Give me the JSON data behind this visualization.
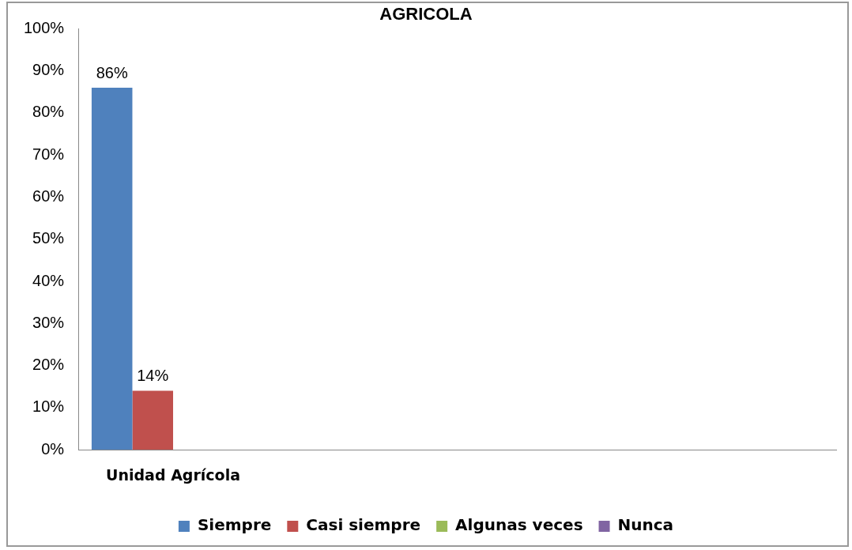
{
  "chart_data": {
    "type": "bar",
    "title": "AGRICOLA",
    "categories": [
      "Unidad Agrícola",
      null,
      null,
      null
    ],
    "series": [
      {
        "name": "Siempre",
        "color": "#4f81bd",
        "values": [
          86,
          null,
          null,
          null
        ]
      },
      {
        "name": "Casi siempre",
        "color": "#c0504d",
        "values": [
          14,
          null,
          null,
          null
        ]
      },
      {
        "name": "Algunas veces",
        "color": "#9bbb59",
        "values": [
          null,
          null,
          null,
          null
        ]
      },
      {
        "name": "Nunca",
        "color": "#8064a2",
        "values": [
          null,
          null,
          null,
          null
        ]
      }
    ],
    "value_labels": [
      [
        "86%",
        null,
        null,
        null
      ],
      [
        "14%",
        null,
        null,
        null
      ],
      [
        null,
        null,
        null,
        null
      ],
      [
        null,
        null,
        null,
        null
      ]
    ],
    "ylim": [
      0,
      100
    ],
    "yticks": [
      {
        "value": 0,
        "label": "0%"
      },
      {
        "value": 10,
        "label": "10%"
      },
      {
        "value": 20,
        "label": "20%"
      },
      {
        "value": 30,
        "label": "30%"
      },
      {
        "value": 40,
        "label": "40%"
      },
      {
        "value": 50,
        "label": "50%"
      },
      {
        "value": 60,
        "label": "60%"
      },
      {
        "value": 70,
        "label": "70%"
      },
      {
        "value": 80,
        "label": "80%"
      },
      {
        "value": 90,
        "label": "90%"
      },
      {
        "value": 100,
        "label": "100%"
      }
    ],
    "grid": false,
    "legend": "bottom"
  }
}
